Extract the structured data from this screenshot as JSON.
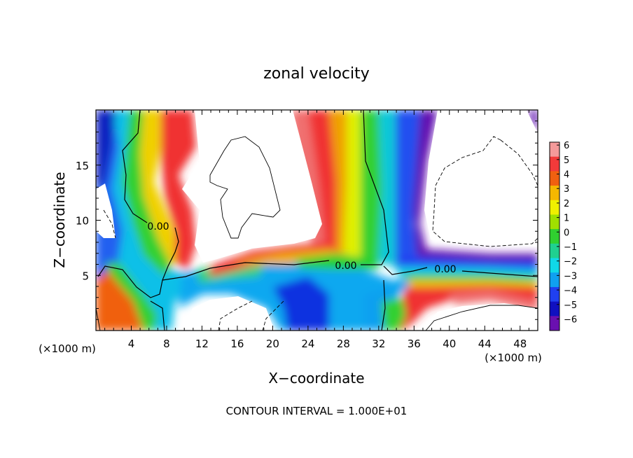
{
  "chart_data": {
    "type": "heatmap",
    "title": "zonal velocity",
    "xlabel": "X−coordinate",
    "ylabel": "Z−coordinate",
    "x_unit_left": "(×1000 m)",
    "x_unit_right": "(×1000 m)",
    "footer": "CONTOUR INTERVAL = 1.000E+01",
    "xlim": [
      0,
      50
    ],
    "ylim": [
      0,
      20
    ],
    "x_ticks": [
      4,
      8,
      12,
      16,
      20,
      24,
      28,
      32,
      36,
      40,
      44,
      48
    ],
    "y_ticks": [
      5,
      10,
      15
    ],
    "colorbar": {
      "levels": [
        6,
        5,
        4,
        3,
        2,
        1,
        0,
        -1,
        -2,
        -3,
        -4,
        -5,
        -6
      ],
      "label_texts": [
        "6",
        "5",
        "4",
        "3",
        "2",
        "1",
        "0",
        "−1",
        "−2",
        "−3",
        "−4",
        "−5",
        "−6"
      ],
      "colors": [
        "#f49a9a",
        "#f23a3a",
        "#f06010",
        "#f5b800",
        "#f0f000",
        "#a0e000",
        "#30d030",
        "#20d090",
        "#10d8e8",
        "#10a0f0",
        "#2040f0",
        "#1010c0",
        "#6a10b0"
      ]
    },
    "contour_labels": [
      "0.00",
      "0.00",
      "0.00"
    ]
  }
}
